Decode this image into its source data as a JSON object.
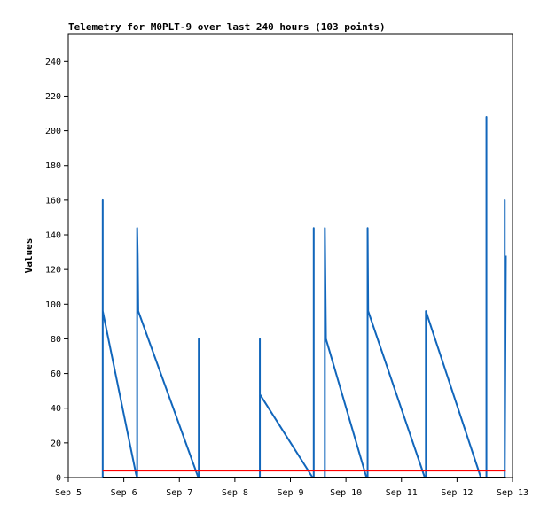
{
  "chart_data": {
    "type": "line",
    "title": "Telemetry for M0PLT-9 over last 240 hours (103 points)",
    "xlabel": "",
    "ylabel": "Values",
    "x_tick_labels": [
      "Sep 5",
      "Sep 6",
      "Sep 7",
      "Sep 8",
      "Sep 9",
      "Sep 10",
      "Sep 11",
      "Sep 12",
      "Sep 13"
    ],
    "xlim_days": [
      5,
      13
    ],
    "ylim": [
      0,
      256
    ],
    "y_ticks": [
      0,
      20,
      40,
      60,
      80,
      100,
      120,
      140,
      160,
      180,
      200,
      220,
      240
    ],
    "grid": false,
    "legend": "none",
    "series": [
      {
        "color": "#1166bb",
        "points": [
          [
            5.62,
            0
          ],
          [
            5.62,
            160
          ],
          [
            5.62,
            96
          ],
          [
            6.22,
            2
          ],
          [
            6.24,
            0
          ],
          [
            6.24,
            144
          ],
          [
            6.25,
            128
          ],
          [
            6.26,
            96
          ],
          [
            7.33,
            1
          ],
          [
            7.35,
            0
          ],
          [
            7.35,
            80
          ],
          [
            7.36,
            24
          ],
          [
            7.36,
            0
          ],
          [
            8.45,
            0
          ],
          [
            8.45,
            80
          ],
          [
            8.45,
            48
          ],
          [
            9.4,
            0
          ],
          [
            9.42,
            0
          ],
          [
            9.42,
            144
          ],
          [
            9.42,
            0
          ],
          [
            9.62,
            0
          ],
          [
            9.62,
            144
          ],
          [
            9.64,
            80
          ],
          [
            10.37,
            0
          ],
          [
            10.39,
            0
          ],
          [
            10.39,
            144
          ],
          [
            10.4,
            96
          ],
          [
            11.42,
            0
          ],
          [
            11.44,
            0
          ],
          [
            11.44,
            96
          ],
          [
            12.43,
            0
          ],
          [
            12.53,
            0
          ],
          [
            12.53,
            208
          ],
          [
            12.53,
            0
          ],
          [
            12.86,
            0
          ],
          [
            12.86,
            160
          ],
          [
            12.86,
            0
          ],
          [
            12.88,
            128
          ]
        ]
      },
      {
        "color": "#ff0000",
        "points": [
          [
            5.62,
            4
          ],
          [
            12.88,
            4
          ]
        ]
      },
      {
        "color": "#000000",
        "points": [
          [
            5.62,
            0
          ],
          [
            12.88,
            0
          ]
        ]
      }
    ]
  }
}
